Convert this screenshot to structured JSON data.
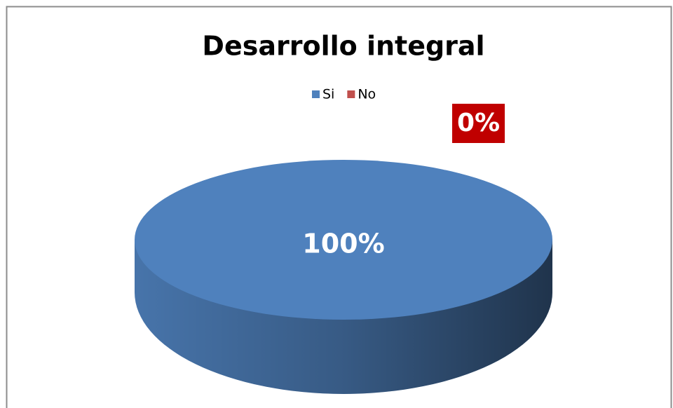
{
  "chart_data": {
    "type": "pie",
    "title": "Desarrollo integral",
    "categories": [
      "Si",
      "No"
    ],
    "values": [
      100,
      0
    ],
    "value_labels": [
      "100%",
      "0%"
    ],
    "colors": [
      "#4f81bd",
      "#c0504d"
    ],
    "legend": "top"
  }
}
